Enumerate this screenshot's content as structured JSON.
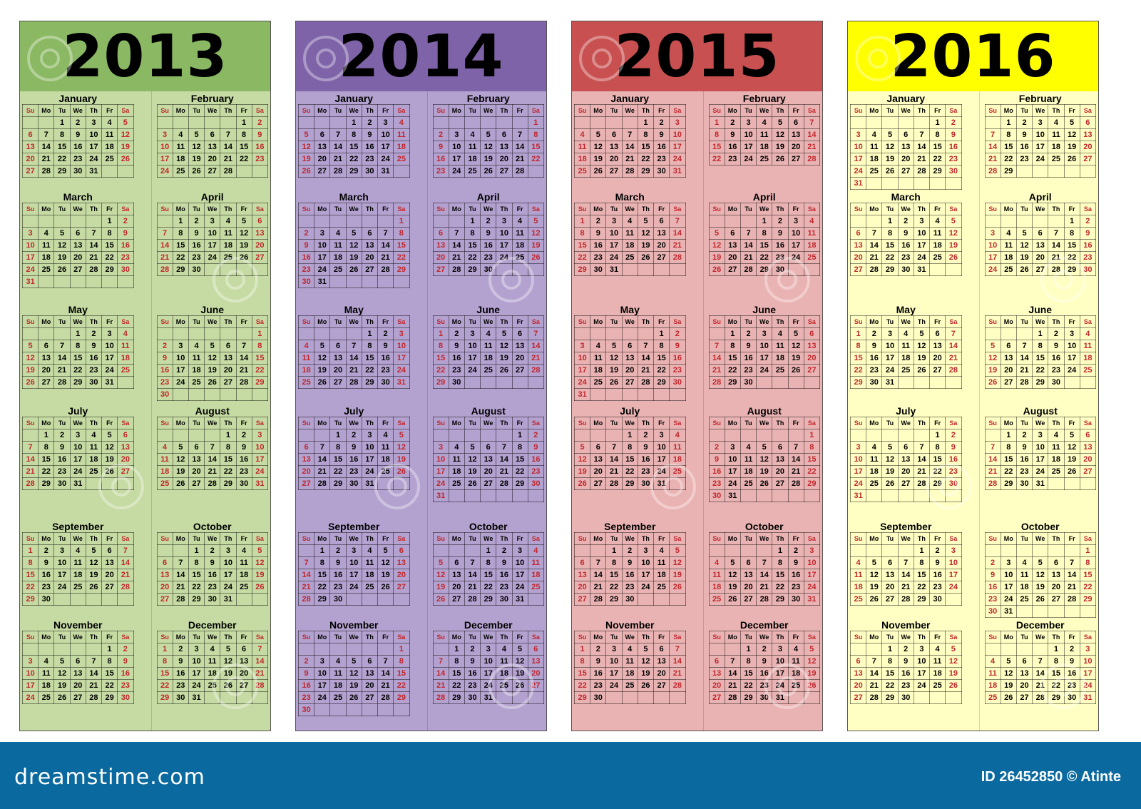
{
  "weekday_headers": [
    "Su",
    "Mo",
    "Tu",
    "We",
    "Th",
    "Fr",
    "Sa"
  ],
  "month_names": [
    "January",
    "February",
    "March",
    "April",
    "May",
    "June",
    "July",
    "August",
    "September",
    "October",
    "November",
    "December"
  ],
  "panels": [
    {
      "year": "2013",
      "header_color": "#8ab863",
      "body_color": "#c6dba3"
    },
    {
      "year": "2014",
      "header_color": "#7e63a8",
      "body_color": "#b3a1cf"
    },
    {
      "year": "2015",
      "header_color": "#c85050",
      "body_color": "#eab3b3"
    },
    {
      "year": "2016",
      "header_color": "#ffff00",
      "body_color": "#ffffc4"
    }
  ],
  "weekend_color": "#c0272d",
  "footer": {
    "brand": "dreamstime.com",
    "id_text": "ID 26452850 © Atinte",
    "background": "#0a6aa0"
  }
}
